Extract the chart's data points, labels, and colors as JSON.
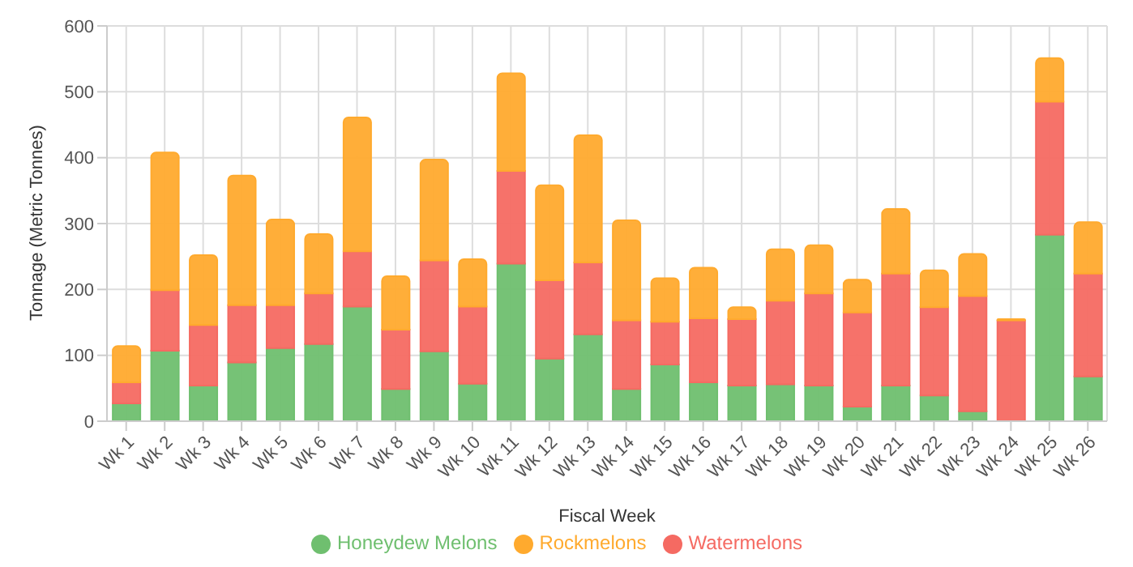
{
  "chart_data": {
    "type": "bar",
    "stacked": true,
    "xlabel": "Fiscal Week",
    "ylabel": "Tonnage (Metric Tonnes)",
    "categories": [
      "Wk 1",
      "Wk 2",
      "Wk 3",
      "Wk 4",
      "Wk 5",
      "Wk 6",
      "Wk 7",
      "Wk 8",
      "Wk 9",
      "Wk 10",
      "Wk 11",
      "Wk 12",
      "Wk 13",
      "Wk 14",
      "Wk 15",
      "Wk 16",
      "Wk 17",
      "Wk 18",
      "Wk 19",
      "Wk 20",
      "Wk 21",
      "Wk 22",
      "Wk 23",
      "Wk 24",
      "Wk 25",
      "Wk 26"
    ],
    "series": [
      {
        "name": "Honeydew Melons",
        "color": "#6fbf6f",
        "values": [
          27,
          107,
          54,
          89,
          111,
          117,
          174,
          49,
          106,
          57,
          239,
          95,
          132,
          49,
          86,
          59,
          54,
          56,
          54,
          22,
          54,
          39,
          15,
          0,
          283,
          68
        ]
      },
      {
        "name": "Watermelons",
        "color": "#f56a62",
        "values": [
          32,
          92,
          92,
          87,
          65,
          77,
          84,
          90,
          138,
          117,
          141,
          119,
          109,
          104,
          65,
          97,
          101,
          127,
          140,
          143,
          170,
          134,
          175,
          153,
          202,
          156
        ]
      },
      {
        "name": "Rockmelons",
        "color": "#ffaa2e",
        "values": [
          55,
          209,
          106,
          197,
          130,
          90,
          203,
          81,
          153,
          72,
          148,
          144,
          193,
          152,
          66,
          77,
          18,
          78,
          73,
          50,
          98,
          56,
          64,
          2,
          66,
          78
        ]
      }
    ],
    "ylim": [
      0,
      600
    ],
    "yticks": [
      0,
      100,
      200,
      300,
      400,
      500,
      600
    ],
    "grid": true,
    "legend": "bottom"
  }
}
